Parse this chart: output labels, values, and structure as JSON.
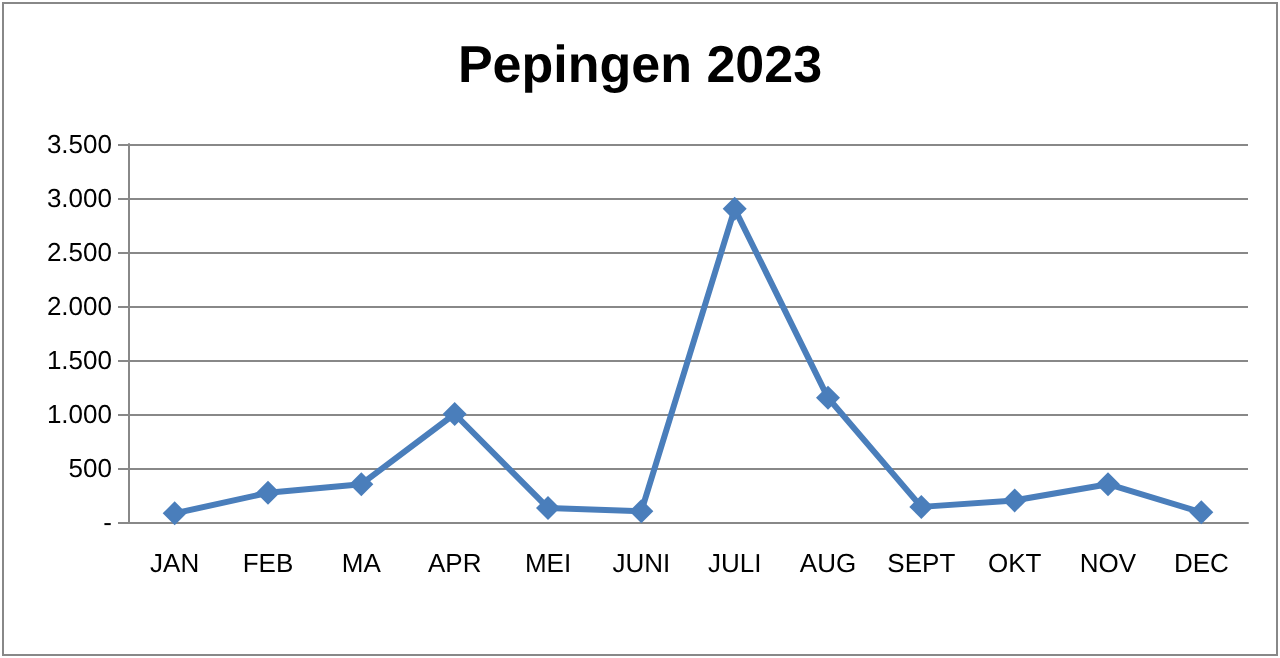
{
  "chart_data": {
    "type": "line",
    "title": "Pepingen 2023",
    "categories": [
      "JAN",
      "FEB",
      "MA",
      "APR",
      "MEI",
      "JUNI",
      "JULI",
      "AUG",
      "SEPT",
      "OKT",
      "NOV",
      "DEC"
    ],
    "series": [
      {
        "color": "#4a7ebb",
        "values": [
          80,
          270,
          350,
          1000,
          130,
          100,
          2900,
          1150,
          140,
          200,
          350,
          90
        ]
      }
    ],
    "ylim": [
      0,
      3500
    ],
    "yticks": [
      {
        "value": 0,
        "label": "-"
      },
      {
        "value": 500,
        "label": "500"
      },
      {
        "value": 1000,
        "label": "1.000"
      },
      {
        "value": 1500,
        "label": "1.500"
      },
      {
        "value": 2000,
        "label": "2.000"
      },
      {
        "value": 2500,
        "label": "2.500"
      },
      {
        "value": 3000,
        "label": "3.000"
      },
      {
        "value": 3500,
        "label": "3.500"
      }
    ],
    "grid": "y",
    "marker": "diamond",
    "line_style": "solid"
  }
}
